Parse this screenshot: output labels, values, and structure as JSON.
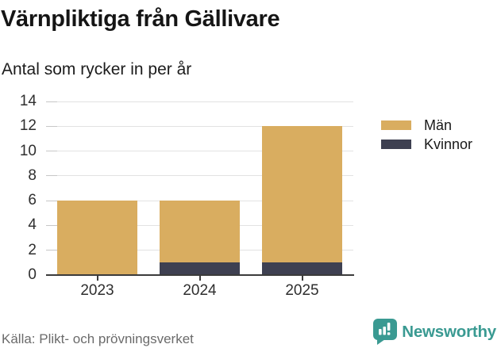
{
  "chart_data": {
    "type": "bar",
    "stacked": true,
    "stack_order": "bottom-to-top",
    "title": "Värnpliktiga från Gällivare",
    "subtitle": "Antal som rycker in per år",
    "categories": [
      "2023",
      "2024",
      "2025"
    ],
    "series": [
      {
        "name": "Kvinnor",
        "color": "#3E4051",
        "values": [
          0,
          1,
          1
        ]
      },
      {
        "name": "Män",
        "color": "#D9AD60",
        "values": [
          6,
          5,
          11
        ]
      }
    ],
    "totals": [
      6,
      6,
      12
    ],
    "xlabel": "",
    "ylabel": "",
    "ylim": [
      0,
      14
    ],
    "yticks": [
      0,
      2,
      4,
      6,
      8,
      10,
      12,
      14
    ],
    "grid": true,
    "legend_position": "right"
  },
  "legend": {
    "items": [
      {
        "label": "Män",
        "color": "#D9AD60"
      },
      {
        "label": "Kvinnor",
        "color": "#3E4051"
      }
    ]
  },
  "footer": {
    "source": "Källa: Plikt- och prövningsverket",
    "brand_name": "Newsworthy"
  },
  "colors": {
    "bar_men": "#D9AD60",
    "bar_women": "#3E4051",
    "axis": "#3B3B3B",
    "gridline": "#E2E2E2",
    "tick_mark": "#C7C7C7",
    "text_dark": "#1A1A1A",
    "text_muted": "#6B6B6B",
    "brand_teal": "#3A9A92",
    "background": "#FFFFFF"
  }
}
